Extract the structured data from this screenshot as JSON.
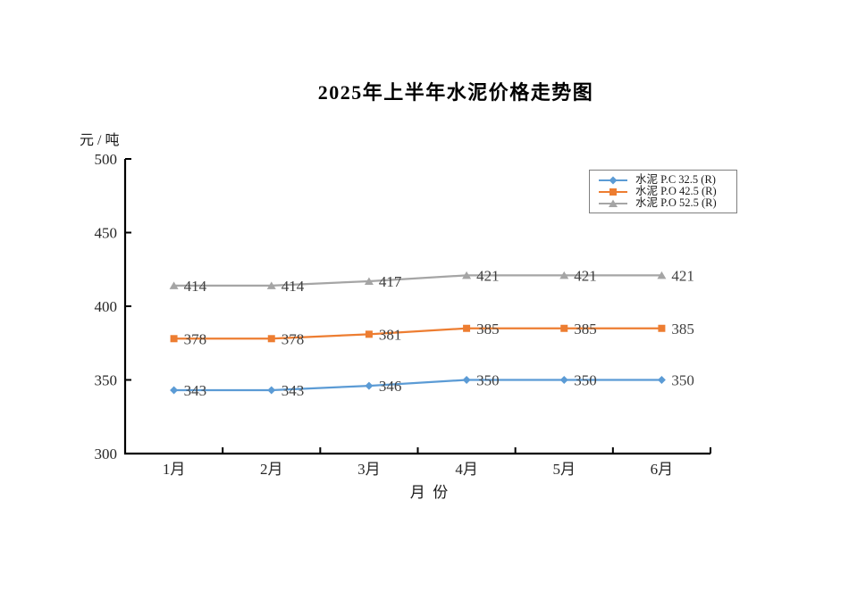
{
  "page": {
    "background": "#ffffff"
  },
  "chart_data": {
    "type": "line",
    "title": "2025年上半年水泥价格走势图",
    "y_unit_label": "元 / 吨",
    "xlabel": "月  份",
    "categories": [
      "1月",
      "2月",
      "3月",
      "4月",
      "5月",
      "6月"
    ],
    "ylim": [
      300,
      500
    ],
    "yticks": [
      300,
      350,
      400,
      450,
      500
    ],
    "grid": false,
    "legend_position": "upper-right",
    "data_labels": true,
    "series": [
      {
        "name": "水泥 P.C 32.5 (R)",
        "marker": "diamond",
        "color": "#5B9BD5",
        "values": [
          343,
          343,
          346,
          350,
          350,
          350
        ]
      },
      {
        "name": "水泥 P.O 42.5 (R)",
        "marker": "square",
        "color": "#ED7D31",
        "values": [
          378,
          378,
          381,
          385,
          385,
          385
        ]
      },
      {
        "name": "水泥 P.O 52.5 (R)",
        "marker": "triangle",
        "color": "#A5A5A5",
        "values": [
          414,
          414,
          417,
          421,
          421,
          421
        ]
      }
    ],
    "colors": {
      "axis": "#000000",
      "data_label_text": "#404040",
      "tick_label_text": "#262626",
      "legend_border": "#7f7f7f",
      "legend_text": "#1a1a1a"
    }
  }
}
